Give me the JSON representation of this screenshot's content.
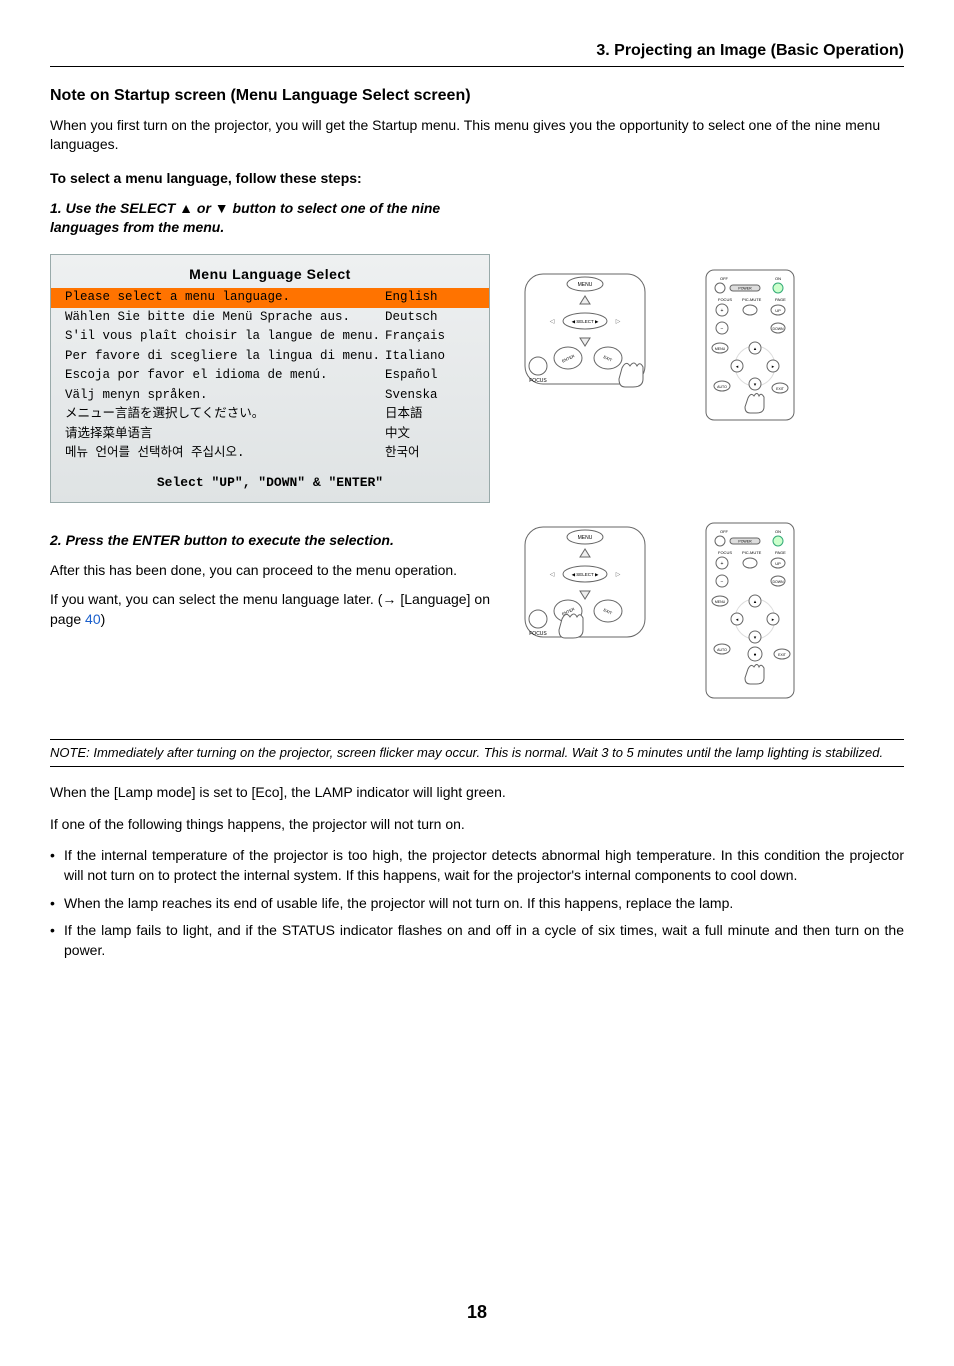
{
  "header": {
    "section": "3. Projecting an Image (Basic Operation)"
  },
  "sub_header": "Note on Startup screen (Menu Language Select screen)",
  "intro": "When you first turn on the projector, you will get the Startup menu. This menu gives you the opportunity to select one of the nine menu languages.",
  "steps_header": "To select a menu language, follow these steps:",
  "step1": "1. Use the SELECT ▲ or ▼ button to select one of the nine languages from the menu.",
  "menu": {
    "title": "Menu Language Select",
    "rows": [
      {
        "prompt": "Please select a menu language.",
        "lang": "English",
        "selected": true
      },
      {
        "prompt": "Wählen Sie bitte die Menü Sprache aus.",
        "lang": "Deutsch",
        "selected": false
      },
      {
        "prompt": "S'il vous plaît choisir la langue de menu.",
        "lang": "Français",
        "selected": false
      },
      {
        "prompt": "Per favore di scegliere la lingua di menu.",
        "lang": "Italiano",
        "selected": false
      },
      {
        "prompt": "Escoja por favor el idioma de menú.",
        "lang": "Español",
        "selected": false
      },
      {
        "prompt": "Välj menyn språken.",
        "lang": "Svenska",
        "selected": false
      },
      {
        "prompt": "メニュー言語を選択してください。",
        "lang": "日本語",
        "selected": false
      },
      {
        "prompt": "请选择菜单语言",
        "lang": "中文",
        "selected": false
      },
      {
        "prompt": "메뉴 언어를 선택하여 주십시오.",
        "lang": "한국어",
        "selected": false
      }
    ],
    "footer": "Select \"UP\", \"DOWN\" & \"ENTER\""
  },
  "step2": "2. Press the ENTER button to execute the selection.",
  "after_step2_1": "After this has been done, you can proceed to the menu operation.",
  "after_step2_2a": "If you want, you can select the menu language later. (→ [Language] on page ",
  "after_step2_2b": "40",
  "after_step2_2c": ")",
  "note": "NOTE: Immediately after turning on the projector, screen flicker may occur. This is normal. Wait 3 to 5 minutes until the lamp lighting is stabilized.",
  "lamp_mode": "When the [Lamp mode] is set to [Eco], the LAMP indicator will light green.",
  "not_turn_on_intro": "If one of the following things happens, the projector will not turn on.",
  "bullets": [
    "If the internal temperature of the projector is too high, the projector detects abnormal high temperature. In this condition the projector will not turn on to protect the internal system. If this happens, wait for the projector's internal components to cool down.",
    "When the lamp reaches its end of usable life, the projector will not turn on. If this happens, replace the lamp.",
    "If the lamp fails to light, and if the STATUS indicator flashes on and off in a cycle of six times, wait a full minute and then turn on the power."
  ],
  "page_number": "18",
  "remote_labels": {
    "off": "OFF",
    "on": "ON",
    "power": "POWER",
    "focus": "FOCUS",
    "picmute": "PIC-MUTE",
    "page": "PAGE",
    "up": "UP",
    "down": "DOWN",
    "menu": "MENU",
    "auto": "AUTO",
    "exit": "EXIT"
  },
  "panel_labels": {
    "menu": "MENU",
    "select": "SELECT",
    "focus": "FOCUS",
    "enter": "ENTER",
    "exit": "EXIT"
  }
}
